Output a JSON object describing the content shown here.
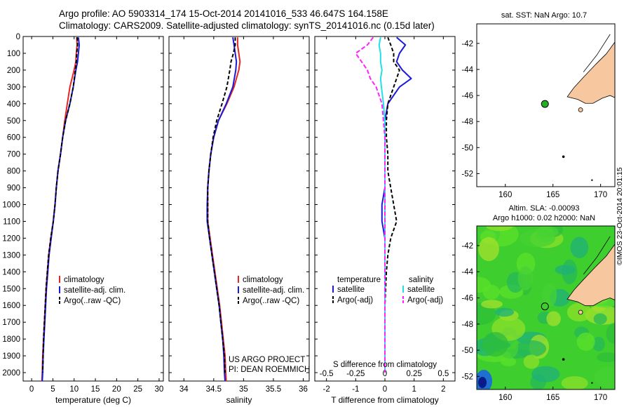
{
  "header": {
    "line1": "Argo profile: AO 5903314_174 15-Oct-2014 20141016_533 46.647S 164.158E",
    "line2": "Climatology: CARS2009. Satellite-adjusted climatology: synTS_20141016.nc (0.15d later)"
  },
  "colors": {
    "climatology": "#e8261f",
    "satellite": "#1a1ad8",
    "argo": "#000000",
    "sat_salinity": "#22e0e6",
    "argo_salinity": "#ff22ff",
    "land": "#f7c7a0",
    "argo_marker": "#22b022"
  },
  "project": {
    "line1": "US ARGO PROJECT",
    "line2": "PI: DEAN ROEMMICH"
  },
  "map_top": {
    "title": "sat. SST: NaN Argo: 10.7",
    "icon": "map-sst"
  },
  "map_bottom": {
    "title1": "Altim. SLA: -0.00093",
    "title2": "Argo h1000: 0.02 h2000: NaN",
    "icon": "map-sla"
  },
  "credit": "©IMOS 23-Oct-2014 20:01:15",
  "chart_data": [
    {
      "type": "line",
      "id": "temperature",
      "xlabel": "temperature (deg C)",
      "ylabel": "",
      "xlim": [
        -2,
        31
      ],
      "ylim": [
        2050,
        0
      ],
      "xticks": [
        "0",
        "5",
        "10",
        "15",
        "20",
        "25",
        "30"
      ],
      "yticks": [
        "0",
        "100",
        "200",
        "300",
        "400",
        "500",
        "600",
        "700",
        "800",
        "900",
        "1000",
        "1100",
        "1200",
        "1300",
        "1400",
        "1500",
        "1600",
        "1700",
        "1800",
        "1900",
        "2000"
      ],
      "legend": [
        "climatology",
        "satellite-adj. clim.",
        "Argo(..raw -QC)"
      ],
      "depth": [
        5,
        50,
        100,
        150,
        200,
        300,
        400,
        500,
        600,
        700,
        800,
        900,
        1000,
        1100,
        1200,
        1300,
        1400,
        1500,
        1600,
        1700,
        1800,
        1900,
        2000,
        2050
      ],
      "series": [
        {
          "name": "climatology",
          "values": [
            10.6,
            10.7,
            10.5,
            10.4,
            10.0,
            9.0,
            8.4,
            7.8,
            7.3,
            6.8,
            6.2,
            5.8,
            5.5,
            5.1,
            4.5,
            4.0,
            3.7,
            3.4,
            3.2,
            3.0,
            2.8,
            2.6,
            2.5,
            2.4
          ]
        },
        {
          "name": "satellite-adj. clim.",
          "values": [
            11.0,
            11.2,
            11.0,
            10.8,
            10.4,
            9.8,
            9.0,
            8.0,
            7.3,
            6.8,
            6.2,
            5.8,
            5.5,
            5.1,
            4.6,
            4.1,
            3.8,
            3.5,
            3.3,
            3.1,
            2.9,
            2.7,
            2.6,
            2.5
          ]
        },
        {
          "name": "Argo(..raw -QC)",
          "values": [
            10.7,
            10.8,
            10.6,
            10.5,
            10.3,
            9.8,
            9.0,
            8.0,
            7.3,
            6.8,
            6.2,
            5.8,
            5.5,
            5.1,
            4.5,
            4.0,
            3.7,
            3.4,
            3.2,
            3.0,
            2.8,
            2.7,
            2.6,
            null
          ]
        }
      ]
    },
    {
      "type": "line",
      "id": "salinity",
      "xlabel": "salinity",
      "xlim": [
        33.75,
        36.1
      ],
      "ylim": [
        2050,
        0
      ],
      "xticks": [
        "34",
        "34.5",
        "35",
        "35.5",
        "36"
      ],
      "legend": [
        "climatology",
        "satellite-adj. clim.",
        "Argo(..raw -QC)"
      ],
      "depth": [
        5,
        50,
        100,
        150,
        200,
        300,
        400,
        500,
        600,
        700,
        800,
        900,
        1000,
        1100,
        1200,
        1300,
        1400,
        1500,
        1600,
        1700,
        1800,
        1900,
        2000,
        2050
      ],
      "series": [
        {
          "name": "climatology",
          "values": [
            34.9,
            34.9,
            34.92,
            34.94,
            34.92,
            34.84,
            34.72,
            34.58,
            34.5,
            34.45,
            34.42,
            34.4,
            34.4,
            34.4,
            34.44,
            34.48,
            34.52,
            34.56,
            34.6,
            34.63,
            34.66,
            34.69,
            34.7,
            34.71
          ]
        },
        {
          "name": "satellite-adj. clim.",
          "values": [
            34.82,
            34.84,
            34.86,
            34.88,
            34.87,
            34.82,
            34.71,
            34.58,
            34.5,
            34.45,
            34.42,
            34.4,
            34.39,
            34.39,
            34.43,
            34.47,
            34.51,
            34.55,
            34.59,
            34.62,
            34.65,
            34.67,
            34.68,
            34.69
          ]
        },
        {
          "name": "Argo(..raw -QC)",
          "values": [
            34.86,
            34.86,
            34.83,
            34.79,
            34.77,
            34.72,
            34.64,
            34.55,
            34.49,
            34.45,
            34.42,
            34.4,
            34.4,
            34.4,
            34.43,
            34.47,
            34.51,
            34.55,
            34.59,
            34.62,
            34.65,
            34.68,
            34.69,
            null
          ]
        }
      ]
    },
    {
      "type": "line",
      "id": "differences",
      "xlabel": "T difference from climatology",
      "xlabel2": "S difference from climatology",
      "xlim": [
        -2.4,
        2.4
      ],
      "ylim": [
        2050,
        0
      ],
      "xticks": [
        "-2",
        "-1",
        "0",
        "1",
        "2"
      ],
      "xticks2": [
        "-0.5",
        "-0.25",
        "0",
        "0.25",
        "0.5"
      ],
      "legend": [
        "temperature",
        "satellite",
        "Argo(-adj)",
        "salinity",
        "satellite",
        "Argo(-adj)"
      ],
      "depth": [
        5,
        50,
        100,
        150,
        200,
        250,
        300,
        400,
        500,
        600,
        700,
        800,
        900,
        1000,
        1100,
        1200,
        1300,
        1400,
        1600,
        1800,
        2000
      ],
      "series": [
        {
          "name": "satellite",
          "values": [
            0.4,
            0.7,
            0.5,
            0.4,
            0.6,
            0.9,
            0.5,
            0.1,
            0.0,
            0.0,
            0.0,
            0.0,
            0.0,
            -0.1,
            -0.1,
            0.0,
            0.0,
            0.0,
            0.0,
            0.0,
            0.0
          ]
        },
        {
          "name": "Argo(-adj)",
          "values": [
            0.1,
            0.2,
            0.3,
            0.3,
            0.5,
            0.4,
            0.3,
            0.1,
            0.05,
            0.05,
            0.1,
            0.1,
            0.2,
            0.3,
            0.4,
            0.2,
            0.1,
            0.05,
            0.0,
            0.0,
            0.0
          ]
        },
        {
          "name": "satellite",
          "values": [
            -0.15,
            -0.2,
            -0.15,
            -0.15,
            -0.1,
            -0.15,
            -0.12,
            -0.05,
            0.0,
            0.0,
            0.0,
            0.0,
            0.0,
            0.0,
            0.0,
            0.0,
            0.0,
            0.0,
            0.0,
            0.0,
            0.0
          ]
        },
        {
          "name": "Argo(-adj)",
          "values": [
            -0.4,
            -0.6,
            -1.0,
            -0.8,
            -0.6,
            -0.5,
            -0.3,
            -0.1,
            -0.05,
            0.0,
            0.0,
            0.0,
            0.0,
            0.0,
            0.0,
            0.0,
            0.0,
            0.0,
            0.0,
            0.0,
            0.0
          ]
        }
      ]
    },
    {
      "type": "scatter",
      "id": "map-sst",
      "xlim": [
        157,
        171.5
      ],
      "ylim": [
        -53,
        -40.5
      ],
      "xticks": [
        "160",
        "165",
        "170"
      ],
      "yticks": [
        "-42",
        "-44",
        "-46",
        "-48",
        "-50",
        "-52"
      ],
      "points": [
        {
          "x": 164.158,
          "y": -46.647,
          "label": "Argo"
        }
      ]
    },
    {
      "type": "heatmap",
      "id": "map-sla",
      "xlim": [
        157,
        171.5
      ],
      "ylim": [
        -53,
        -40.5
      ],
      "xticks": [
        "160",
        "165",
        "170"
      ],
      "yticks": [
        "-42",
        "-44",
        "-46",
        "-48",
        "-50",
        "-52"
      ],
      "points": [
        {
          "x": 164.158,
          "y": -46.647,
          "label": "Argo"
        }
      ]
    }
  ]
}
